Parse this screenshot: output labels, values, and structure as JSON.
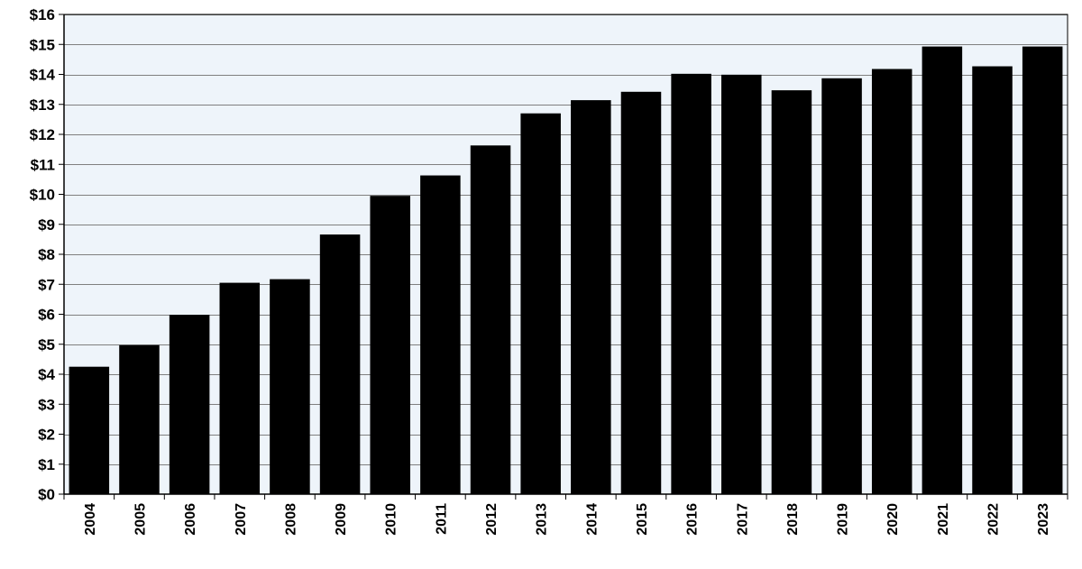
{
  "colors": {
    "plot_background": "#eef4fa",
    "bar": "#000000",
    "gridline": "#7f7f7f",
    "axis": "#000000"
  },
  "chart_data": {
    "type": "bar",
    "title": "",
    "xlabel": "",
    "ylabel": "",
    "grid": true,
    "ylim": [
      0,
      16
    ],
    "yticks": [
      0,
      1,
      2,
      3,
      4,
      5,
      6,
      7,
      8,
      9,
      10,
      11,
      12,
      13,
      14,
      15,
      16
    ],
    "ytick_labels": [
      "$0",
      "$1",
      "$2",
      "$3",
      "$4",
      "$5",
      "$6",
      "$7",
      "$8",
      "$9",
      "$10",
      "$11",
      "$12",
      "$13",
      "$14",
      "$15",
      "$16"
    ],
    "categories": [
      "2004",
      "2005",
      "2006",
      "2007",
      "2008",
      "2009",
      "2010",
      "2011",
      "2012",
      "2013",
      "2014",
      "2015",
      "2016",
      "2017",
      "2018",
      "2019",
      "2020",
      "2021",
      "2022",
      "2023"
    ],
    "values": [
      4.25,
      4.97,
      5.98,
      7.05,
      7.17,
      8.66,
      9.95,
      10.63,
      11.63,
      12.7,
      13.14,
      13.42,
      14.02,
      13.99,
      13.47,
      13.87,
      14.18,
      14.93,
      14.27,
      14.93
    ]
  }
}
